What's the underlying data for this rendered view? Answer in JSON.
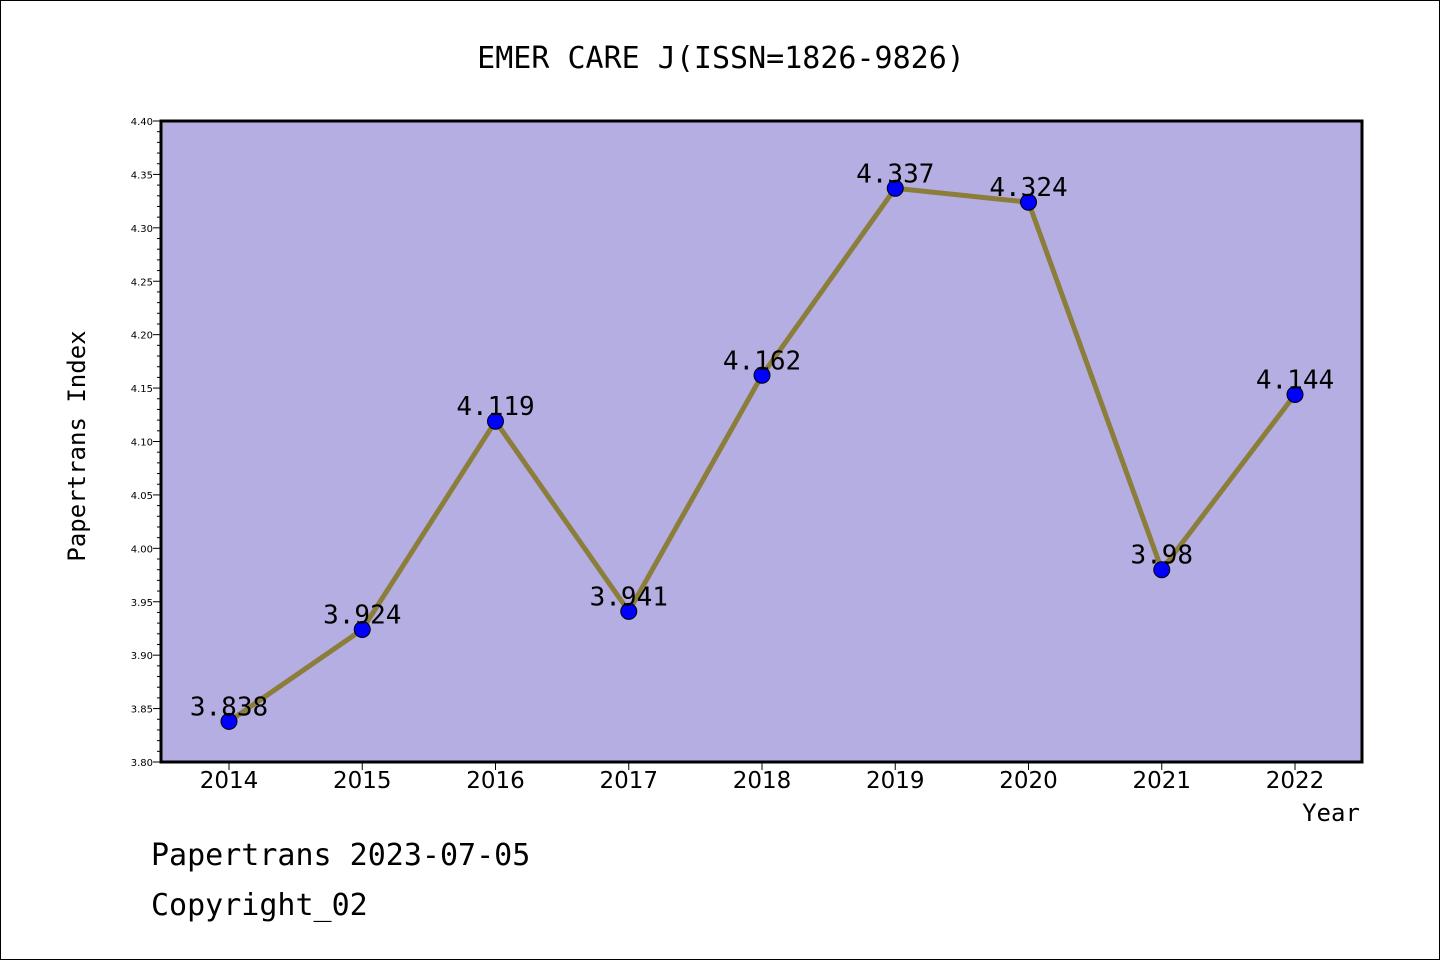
{
  "chart_data": {
    "type": "line",
    "title": "EMER CARE J(ISSN=1826-9826)",
    "xlabel": "Year",
    "ylabel": "Papertrans Index",
    "categories": [
      "2014",
      "2015",
      "2016",
      "2017",
      "2018",
      "2019",
      "2020",
      "2021",
      "2022"
    ],
    "values": [
      3.838,
      3.924,
      4.119,
      3.941,
      4.162,
      4.337,
      4.324,
      3.98,
      4.144
    ],
    "data_labels": [
      "3.838",
      "3.924",
      "4.119",
      "3.941",
      "4.162",
      "4.337",
      "4.324",
      "3.98",
      "4.144"
    ],
    "ylim": [
      3.8,
      4.4
    ],
    "yticks": [
      "3.80",
      "3.85",
      "3.90",
      "3.95",
      "4.00",
      "4.05",
      "4.10",
      "4.15",
      "4.20",
      "4.25",
      "4.30",
      "4.35",
      "4.40"
    ],
    "grid": false,
    "legend": "none",
    "colors": {
      "plot_background": "#b5aee2",
      "line": "#8b7d3a",
      "marker": "#0000ff",
      "frame": "#000000"
    }
  },
  "footer": {
    "line1": "Papertrans 2023-07-05",
    "line2": "Copyright_02"
  }
}
